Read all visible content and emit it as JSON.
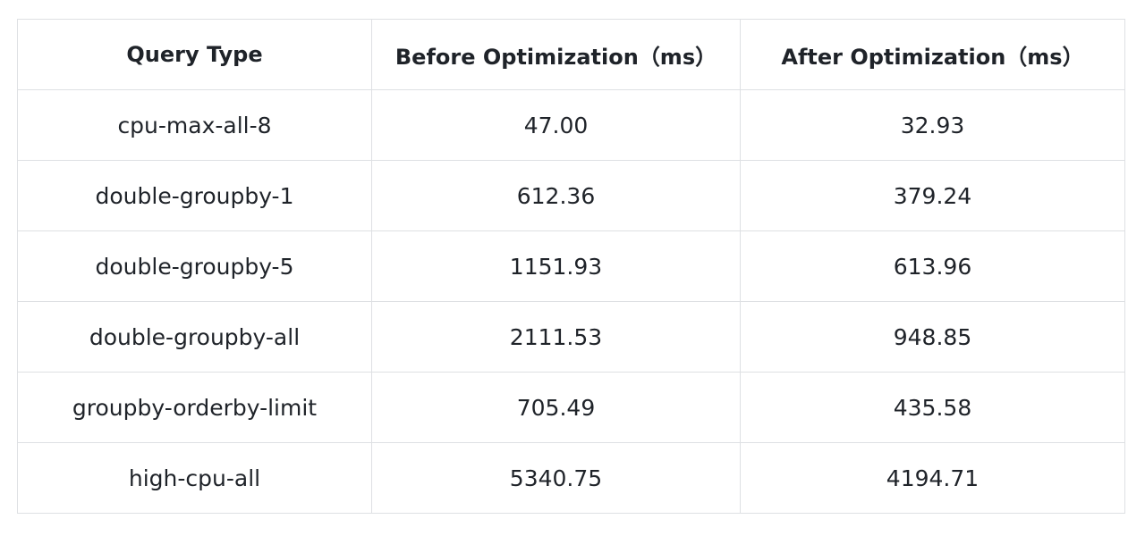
{
  "table": {
    "header": [
      "Query Type",
      "Before Optimization（ms）",
      "After Optimization（ms）"
    ],
    "rows": [
      [
        "cpu-max-all-8",
        "47.00",
        "32.93"
      ],
      [
        "double-groupby-1",
        "612.36",
        "379.24"
      ],
      [
        "double-groupby-5",
        "1151.93",
        "613.96"
      ],
      [
        "double-groupby-all",
        "2111.53",
        "948.85"
      ],
      [
        "groupby-orderby-limit",
        "705.49",
        "435.58"
      ],
      [
        "high-cpu-all",
        "5340.75",
        "4194.71"
      ]
    ]
  }
}
